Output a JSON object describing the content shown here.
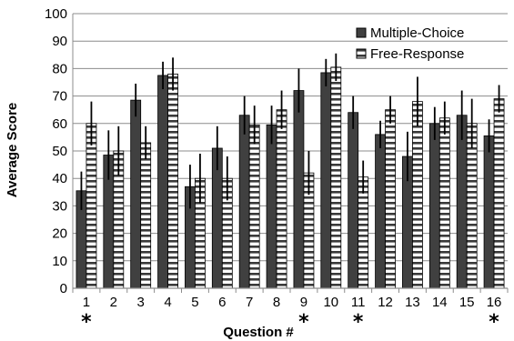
{
  "chart_data": {
    "type": "bar",
    "title": "",
    "xlabel": "Question #",
    "ylabel": "Average Score",
    "ylim": [
      0,
      100
    ],
    "yticks": [
      0,
      10,
      20,
      30,
      40,
      50,
      60,
      70,
      80,
      90,
      100
    ],
    "grid": true,
    "legend_position": "top-right",
    "categories": [
      "1",
      "2",
      "3",
      "4",
      "5",
      "6",
      "7",
      "8",
      "9",
      "10",
      "11",
      "12",
      "13",
      "14",
      "15",
      "16"
    ],
    "significance_marker": "*",
    "significant_categories": [
      "1",
      "9",
      "11",
      "16"
    ],
    "series": [
      {
        "name": "Multiple-Choice",
        "fill": "dark-gray-solid",
        "color": "#404040",
        "values": [
          35.5,
          48.5,
          68.5,
          77.5,
          37,
          51,
          63,
          59.5,
          72,
          78.5,
          64,
          56,
          48,
          60,
          63,
          55.5
        ],
        "error": [
          7,
          9,
          6,
          5,
          8,
          8,
          7,
          7,
          8,
          5,
          6,
          5,
          9,
          6,
          9,
          6
        ]
      },
      {
        "name": "Free-Response",
        "fill": "white-horizontal-stripes",
        "color": "#ffffff",
        "values": [
          60,
          50,
          53,
          78,
          40,
          40,
          59.5,
          65,
          42,
          80.5,
          40.5,
          65,
          68,
          62,
          60,
          69
        ],
        "error": [
          8,
          9,
          6,
          6,
          9,
          8,
          7,
          7,
          8,
          5,
          6,
          5,
          9,
          6,
          9,
          5
        ]
      }
    ]
  }
}
